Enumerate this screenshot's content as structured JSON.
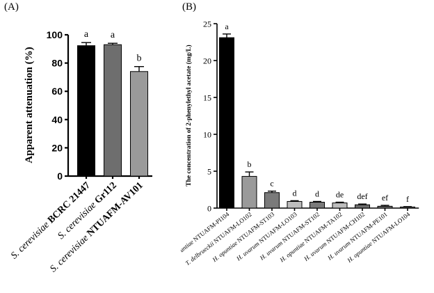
{
  "chart_data": [
    {
      "panel": "(A)",
      "type": "bar",
      "ylabel": "Apparent attenuation (%)",
      "ylim": [
        0,
        100
      ],
      "yticks": [
        0,
        20,
        40,
        60,
        80,
        100
      ],
      "categories": [
        {
          "italic": "S. cerevisiae",
          "bold": "BCRC 21447"
        },
        {
          "italic": "S. cerevisiae",
          "bold": "Gr112"
        },
        {
          "italic": "S. cerevisiae",
          "bold": "NTUAFM-AV101"
        }
      ],
      "values": [
        92.3,
        93.0,
        74.0
      ],
      "errors": [
        2.2,
        1.0,
        3.5
      ],
      "letters": [
        "a",
        "a",
        "b"
      ],
      "colors": [
        "#000000",
        "#6e6e6e",
        "#9a9a9a"
      ]
    },
    {
      "panel": "(B)",
      "type": "bar",
      "ylabel": "The concentration of 2-phenylethyl acetate (mg/L)",
      "ylim": [
        0,
        25
      ],
      "yticks": [
        0,
        5,
        10,
        15,
        20,
        25
      ],
      "categories": [
        {
          "italic": "H. opuntiae",
          "normal": "NTUAFM-PI104"
        },
        {
          "italic": "T. delbrueckii",
          "normal": "NTUAFM-LO102"
        },
        {
          "italic": "H. opuntiae",
          "normal": "NTUAFM-ST103"
        },
        {
          "italic": "H. uvarum",
          "normal": "NTUAFM-LO103"
        },
        {
          "italic": "H. uvarum",
          "normal": "NTUAFM-ST102"
        },
        {
          "italic": "H. opuntiae",
          "normal": "NTUAFM-TA102"
        },
        {
          "italic": "H. uvarum",
          "normal": "NTUAFM-CH102"
        },
        {
          "italic": "H. uvarum",
          "normal": "NTUAFM-PE101"
        },
        {
          "italic": "H. opuntiae",
          "normal": "NTUAFM-LO104"
        }
      ],
      "values": [
        23.1,
        4.3,
        2.1,
        0.9,
        0.8,
        0.7,
        0.45,
        0.25,
        0.15
      ],
      "errors": [
        0.5,
        0.6,
        0.2,
        0.1,
        0.1,
        0.1,
        0.1,
        0.12,
        0.05
      ],
      "letters": [
        "a",
        "b",
        "c",
        "d",
        "d",
        "de",
        "def",
        "ef",
        "f"
      ],
      "colors": [
        "#000000",
        "#9a9a9a",
        "#7a7a7a",
        "#bdbdbd",
        "#7a7a7a",
        "#bdbdbd",
        "#6e6e6e",
        "#6e6e6e",
        "#6e6e6e"
      ]
    }
  ]
}
